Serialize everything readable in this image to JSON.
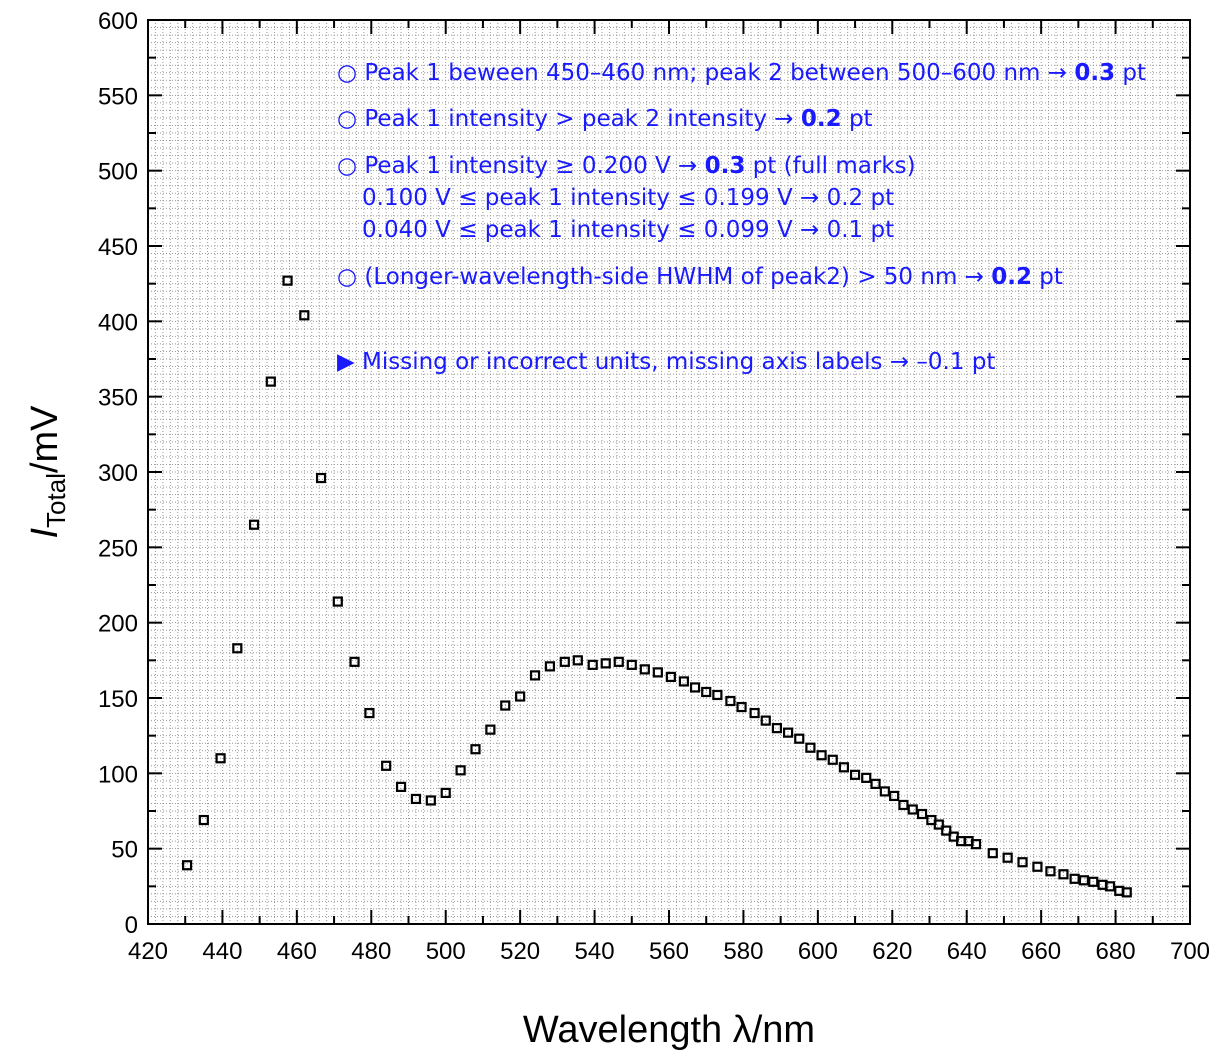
{
  "chart_data": {
    "type": "scatter",
    "xlabel": "Wavelength λ/nm",
    "ylabel_main": "I",
    "ylabel_sub": "Total",
    "ylabel_unit": "/mV",
    "xlim": [
      420,
      700
    ],
    "ylim": [
      0,
      600
    ],
    "x_ticks": [
      "420",
      "440",
      "460",
      "480",
      "500",
      "520",
      "540",
      "560",
      "580",
      "600",
      "620",
      "640",
      "660",
      "680",
      "700"
    ],
    "y_ticks": [
      "0",
      "50",
      "100",
      "150",
      "200",
      "250",
      "300",
      "350",
      "400",
      "450",
      "500",
      "550",
      "600"
    ],
    "grid": true,
    "marker": "open-square",
    "series": [
      {
        "points": [
          [
            430.5,
            39
          ],
          [
            435,
            69
          ],
          [
            439.5,
            110
          ],
          [
            444,
            183
          ],
          [
            448.5,
            265
          ],
          [
            453,
            360
          ],
          [
            457.5,
            427
          ],
          [
            462,
            404
          ],
          [
            466.5,
            296
          ],
          [
            471,
            214
          ],
          [
            475.5,
            174
          ],
          [
            479.5,
            140
          ],
          [
            484,
            105
          ],
          [
            488,
            91
          ],
          [
            492,
            83
          ],
          [
            496,
            82
          ],
          [
            500,
            87
          ],
          [
            504,
            102
          ],
          [
            508,
            116
          ],
          [
            512,
            129
          ],
          [
            516,
            145
          ],
          [
            520,
            151
          ],
          [
            524,
            165
          ],
          [
            528,
            171
          ],
          [
            532,
            174
          ],
          [
            535.5,
            175
          ],
          [
            539.5,
            172
          ],
          [
            543,
            173
          ],
          [
            546.5,
            174
          ],
          [
            550,
            172
          ],
          [
            553.5,
            169
          ],
          [
            557,
            167
          ],
          [
            560.5,
            164
          ],
          [
            564,
            161
          ],
          [
            567,
            157
          ],
          [
            570,
            154
          ],
          [
            573,
            152
          ],
          [
            576.5,
            148
          ],
          [
            579.5,
            144
          ],
          [
            583,
            140
          ],
          [
            586,
            135
          ],
          [
            589,
            130
          ],
          [
            592,
            127
          ],
          [
            595,
            123
          ],
          [
            598,
            117
          ],
          [
            601,
            112
          ],
          [
            604,
            109
          ],
          [
            607,
            104
          ],
          [
            610,
            99
          ],
          [
            613,
            97
          ],
          [
            615.5,
            93
          ],
          [
            618,
            88
          ],
          [
            620.5,
            85
          ],
          [
            623,
            79
          ],
          [
            625.5,
            76
          ],
          [
            628,
            73
          ],
          [
            630.5,
            69
          ],
          [
            632.5,
            66
          ],
          [
            634.5,
            62
          ],
          [
            636.5,
            58
          ],
          [
            638.5,
            55
          ],
          [
            640.5,
            55
          ],
          [
            642.5,
            53
          ],
          [
            647,
            47
          ],
          [
            651,
            44
          ],
          [
            655,
            41
          ],
          [
            659,
            38
          ],
          [
            662.5,
            35
          ],
          [
            666,
            33
          ],
          [
            669,
            30
          ],
          [
            671.5,
            29
          ],
          [
            674,
            28
          ],
          [
            676.5,
            26
          ],
          [
            678.5,
            25
          ],
          [
            681,
            22
          ],
          [
            683,
            21
          ]
        ]
      }
    ]
  },
  "annotations": [
    {
      "pre": "○ Peak 1 beween 450–460 nm;  peak 2 between 500–600 nm → ",
      "bold": "0.3",
      "post": " pt"
    },
    {
      "pre": "○ Peak 1 intensity > peak 2 intensity → ",
      "bold": "0.2",
      "post": " pt"
    },
    {
      "pre": "○ Peak 1 intensity ≥ 0.200 V → ",
      "bold": "0.3",
      "post": " pt  (full marks)"
    },
    {
      "pre": "0.100 V ≤ peak 1 intensity ≤ 0.199 V → 0.2 pt",
      "bold": "",
      "post": ""
    },
    {
      "pre": "0.040 V ≤ peak 1 intensity ≤ 0.099 V → 0.1 pt",
      "bold": "",
      "post": ""
    },
    {
      "pre": "○ (Longer-wavelength-side HWHM of peak2) > 50 nm → ",
      "bold": "0.2",
      "post": " pt"
    },
    {
      "pre": "▶ Missing or incorrect units, missing axis labels → –0.1 pt",
      "bold": "",
      "post": ""
    }
  ],
  "colors": {
    "annotation": "#1a1aff",
    "marker": "#000000",
    "grid": "#9a9a9a",
    "axis": "#000000"
  }
}
